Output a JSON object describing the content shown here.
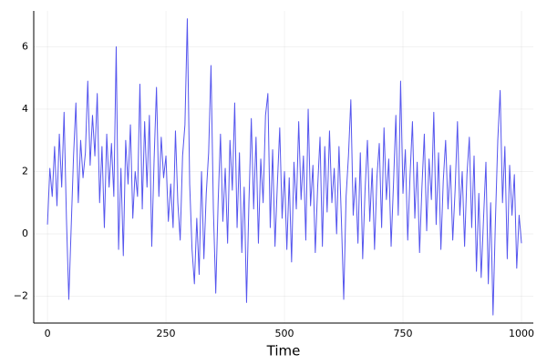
{
  "chart_data": {
    "type": "line",
    "x_label": "Time",
    "xlim": [
      -29,
      1025
    ],
    "ylim": [
      -2.86,
      7.15
    ],
    "xticks": [
      0,
      250,
      500,
      750,
      1000
    ],
    "yticks": [
      {
        "value": -2,
        "label": "−2"
      },
      0,
      2,
      4,
      6
    ],
    "grid": true,
    "x": [
      0,
      5,
      10,
      15,
      20,
      25,
      30,
      35,
      40,
      45,
      50,
      55,
      60,
      65,
      70,
      75,
      80,
      85,
      90,
      95,
      100,
      105,
      110,
      115,
      120,
      125,
      130,
      135,
      140,
      145,
      150,
      155,
      160,
      165,
      170,
      175,
      180,
      185,
      190,
      195,
      200,
      205,
      210,
      215,
      220,
      225,
      230,
      235,
      240,
      245,
      250,
      255,
      260,
      265,
      270,
      275,
      280,
      285,
      290,
      295,
      300,
      305,
      310,
      315,
      320,
      325,
      330,
      335,
      340,
      345,
      350,
      355,
      360,
      365,
      370,
      375,
      380,
      385,
      390,
      395,
      400,
      405,
      410,
      415,
      420,
      425,
      430,
      435,
      440,
      445,
      450,
      455,
      460,
      465,
      470,
      475,
      480,
      485,
      490,
      495,
      500,
      505,
      510,
      515,
      520,
      525,
      530,
      535,
      540,
      545,
      550,
      555,
      560,
      565,
      570,
      575,
      580,
      585,
      590,
      595,
      600,
      605,
      610,
      615,
      620,
      625,
      630,
      635,
      640,
      645,
      650,
      655,
      660,
      665,
      670,
      675,
      680,
      685,
      690,
      695,
      700,
      705,
      710,
      715,
      720,
      725,
      730,
      735,
      740,
      745,
      750,
      755,
      760,
      765,
      770,
      775,
      780,
      785,
      790,
      795,
      800,
      805,
      810,
      815,
      820,
      825,
      830,
      835,
      840,
      845,
      850,
      855,
      860,
      865,
      870,
      875,
      880,
      885,
      890,
      895,
      900,
      905,
      910,
      915,
      920,
      925,
      930,
      935,
      940,
      945,
      950,
      955,
      960,
      965,
      970,
      975,
      980,
      985,
      990,
      995,
      1000
    ],
    "series": [
      {
        "color": "#5555ee",
        "values": [
          0.3,
          2.1,
          1.2,
          2.8,
          0.9,
          3.2,
          1.5,
          3.9,
          0.5,
          -2.1,
          0.2,
          2.5,
          4.2,
          1.0,
          3.0,
          1.8,
          2.6,
          4.9,
          2.2,
          3.8,
          2.5,
          4.5,
          1.0,
          2.8,
          0.2,
          3.2,
          1.5,
          2.9,
          1.2,
          6.0,
          -0.5,
          2.1,
          -0.7,
          3.0,
          1.6,
          3.5,
          0.5,
          2.0,
          1.2,
          4.8,
          0.8,
          3.6,
          1.5,
          3.8,
          -0.4,
          2.4,
          4.7,
          1.2,
          3.1,
          1.8,
          2.5,
          0.4,
          1.6,
          0.2,
          3.3,
          1.0,
          -0.2,
          2.5,
          3.5,
          6.9,
          1.6,
          -0.5,
          -1.6,
          0.5,
          -1.3,
          2.0,
          -0.8,
          1.3,
          2.6,
          5.4,
          0.8,
          -1.9,
          1.0,
          3.2,
          0.4,
          2.1,
          -0.3,
          3.0,
          1.4,
          4.2,
          0.2,
          2.6,
          -0.6,
          1.5,
          -2.2,
          1.0,
          3.7,
          0.8,
          3.1,
          -0.3,
          2.4,
          1.0,
          3.8,
          4.5,
          0.2,
          2.7,
          -0.4,
          1.6,
          3.4,
          0.5,
          2.0,
          -0.5,
          1.8,
          -0.9,
          2.3,
          0.8,
          3.6,
          1.1,
          2.5,
          -0.2,
          4.0,
          0.9,
          2.2,
          -0.6,
          1.5,
          3.1,
          -0.4,
          2.8,
          0.7,
          3.3,
          1.0,
          2.1,
          0.0,
          2.8,
          0.5,
          -2.1,
          1.2,
          2.5,
          4.3,
          0.6,
          1.8,
          -0.3,
          2.6,
          -0.8,
          1.4,
          3.0,
          0.4,
          2.1,
          -0.5,
          1.8,
          2.9,
          0.2,
          3.4,
          1.1,
          2.4,
          -0.4,
          1.6,
          3.8,
          0.6,
          4.9,
          1.3,
          2.7,
          -0.2,
          1.9,
          3.6,
          0.5,
          2.3,
          -0.6,
          1.5,
          3.2,
          0.1,
          2.4,
          1.1,
          3.9,
          0.3,
          2.6,
          -0.5,
          1.7,
          3.0,
          0.8,
          2.2,
          -0.2,
          1.4,
          3.6,
          0.6,
          2.0,
          -0.4,
          1.9,
          3.1,
          0.2,
          2.5,
          -1.2,
          1.3,
          -1.4,
          0.5,
          2.3,
          -1.6,
          1.0,
          -2.6,
          0.4,
          3.0,
          4.6,
          1.0,
          2.8,
          -0.8,
          2.2,
          0.6,
          1.9,
          -1.1,
          0.6,
          -0.3
        ]
      }
    ]
  }
}
